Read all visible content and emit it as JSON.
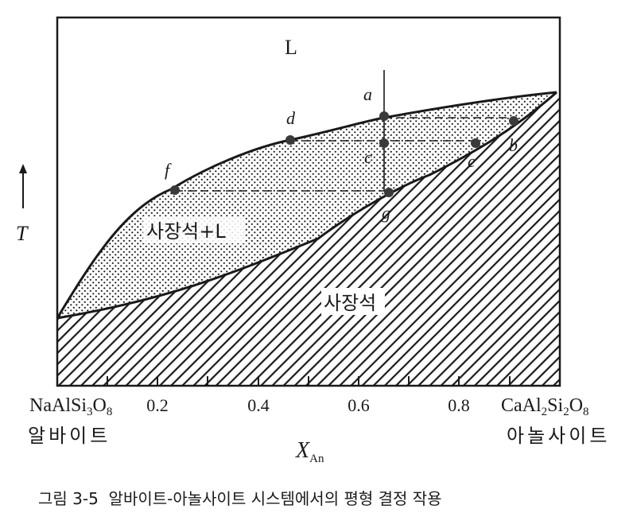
{
  "diagram": {
    "region_liquid": "L",
    "region_two_phase": "사장석+L",
    "region_solid": "사장석",
    "point_labels": {
      "a": "a",
      "b": "b",
      "c": "c",
      "d": "d",
      "e": "e",
      "f": "f",
      "g": "g"
    },
    "y_axis_label": "T",
    "x_axis_label": "X",
    "x_axis_label_sub": "An",
    "ticks": [
      "0.2",
      "0.4",
      "0.6",
      "0.8"
    ],
    "left_end": {
      "formula_parts": [
        "NaAlSi",
        "3",
        "O",
        "8"
      ],
      "name": "알바이트"
    },
    "right_end": {
      "formula_parts": [
        "CaAl",
        "2",
        "Si",
        "2",
        "O",
        "8"
      ],
      "name": "아놀사이트"
    }
  },
  "caption": "그림 3-5  알바이트-아놀사이트 시스템에서의 평형 결정 작용",
  "colors": {
    "ink": "#1a1a1a",
    "point": "#3a3a3a"
  }
}
